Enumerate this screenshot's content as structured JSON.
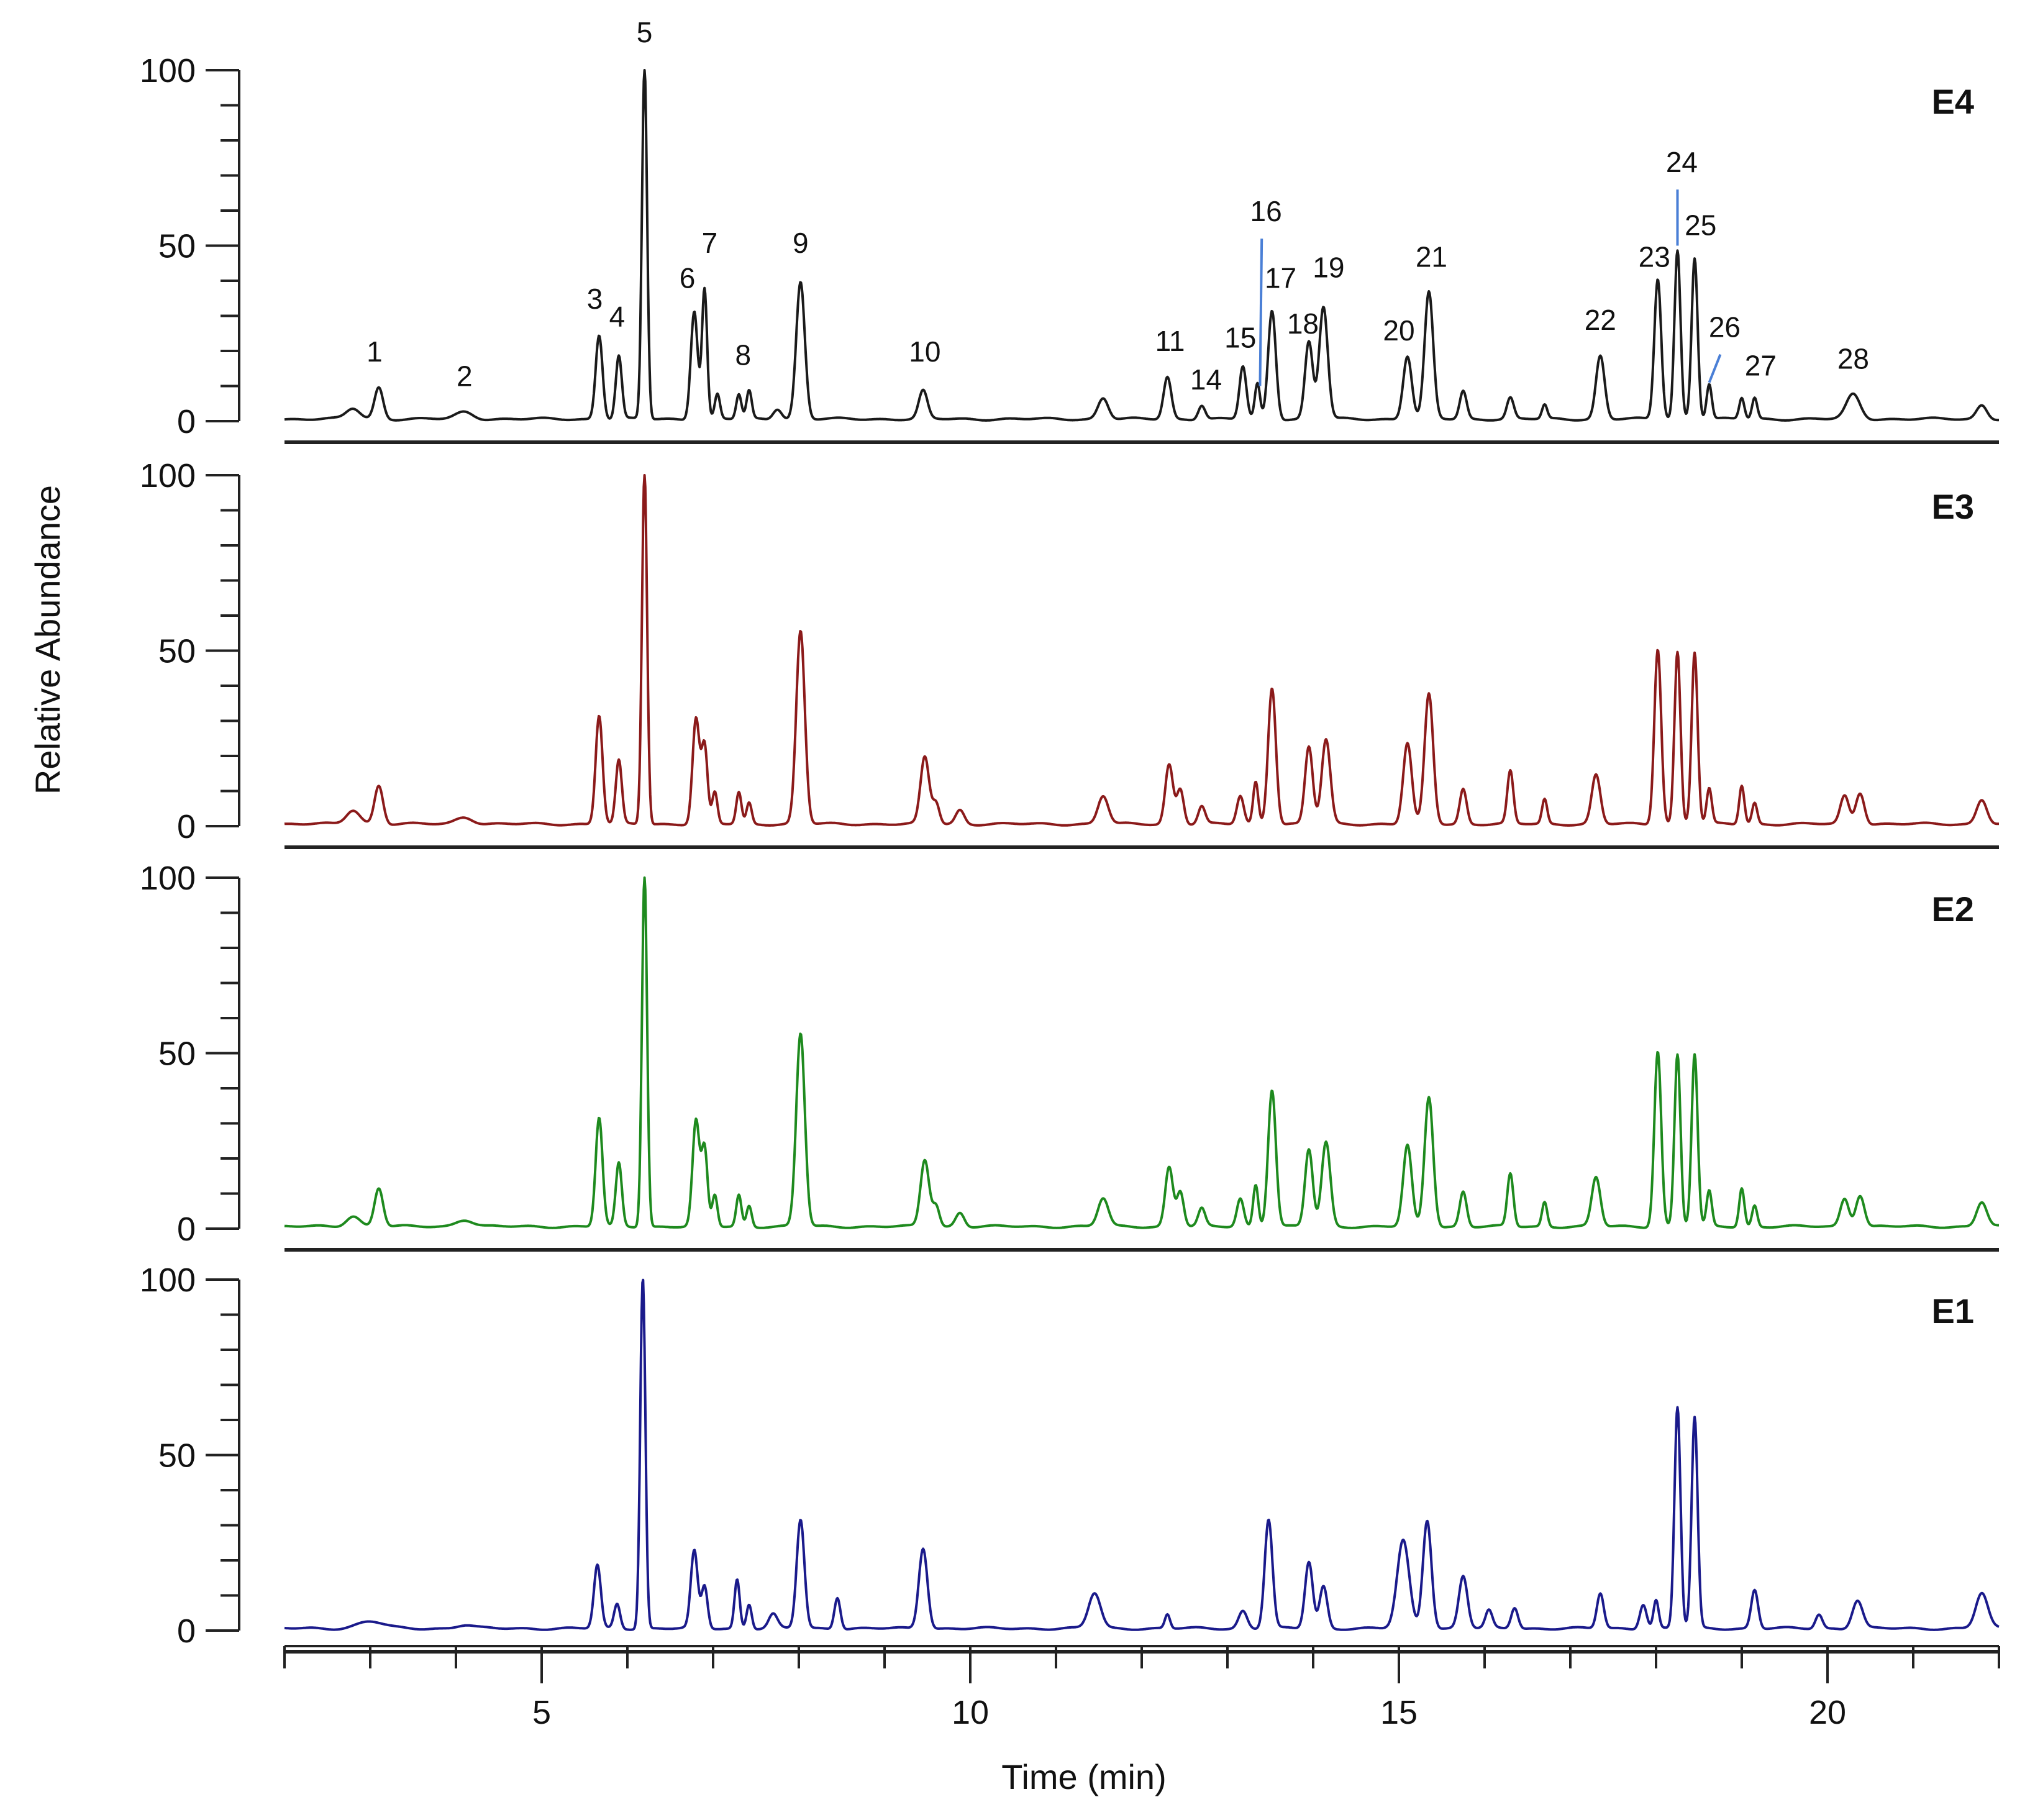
{
  "chart_data": {
    "type": "line",
    "title": "",
    "xlabel": "Time (min)",
    "ylabel": "Relative Abundance",
    "xlim": [
      2.0,
      22.0
    ],
    "ylim": [
      0,
      100
    ],
    "x_ticks": [
      5,
      10,
      15,
      20
    ],
    "x_tick_labels": [
      "5",
      "10",
      "15",
      "20"
    ],
    "y_ticks": [
      0,
      50,
      100
    ],
    "y_tick_labels": [
      "0",
      "50",
      "100"
    ],
    "grid": false,
    "legend": "none",
    "panels": [
      {
        "name": "E4",
        "color": "#1a1a1a",
        "peaks": [
          {
            "x": 2.8,
            "y": 3,
            "w": 0.08
          },
          {
            "x": 3.1,
            "y": 9,
            "w": 0.05
          },
          {
            "x": 4.1,
            "y": 2,
            "w": 0.1
          },
          {
            "x": 5.67,
            "y": 24,
            "w": 0.04
          },
          {
            "x": 5.9,
            "y": 18,
            "w": 0.035
          },
          {
            "x": 6.2,
            "y": 100,
            "w": 0.03
          },
          {
            "x": 6.78,
            "y": 31,
            "w": 0.04
          },
          {
            "x": 6.9,
            "y": 37,
            "w": 0.03
          },
          {
            "x": 7.05,
            "y": 7,
            "w": 0.03
          },
          {
            "x": 7.3,
            "y": 7,
            "w": 0.03
          },
          {
            "x": 7.42,
            "y": 8,
            "w": 0.03
          },
          {
            "x": 7.75,
            "y": 3,
            "w": 0.05
          },
          {
            "x": 8.02,
            "y": 39,
            "w": 0.05
          },
          {
            "x": 9.45,
            "y": 8,
            "w": 0.05
          },
          {
            "x": 11.55,
            "y": 6,
            "w": 0.06
          },
          {
            "x": 12.3,
            "y": 12,
            "w": 0.045
          },
          {
            "x": 12.7,
            "y": 4,
            "w": 0.04
          },
          {
            "x": 13.18,
            "y": 15,
            "w": 0.04
          },
          {
            "x": 13.35,
            "y": 10,
            "w": 0.03
          },
          {
            "x": 13.52,
            "y": 31,
            "w": 0.045
          },
          {
            "x": 13.95,
            "y": 22,
            "w": 0.045
          },
          {
            "x": 14.12,
            "y": 32,
            "w": 0.05
          },
          {
            "x": 15.1,
            "y": 18,
            "w": 0.05
          },
          {
            "x": 15.35,
            "y": 36,
            "w": 0.05
          },
          {
            "x": 15.75,
            "y": 8,
            "w": 0.04
          },
          {
            "x": 16.3,
            "y": 6,
            "w": 0.04
          },
          {
            "x": 16.7,
            "y": 4,
            "w": 0.03
          },
          {
            "x": 17.35,
            "y": 18,
            "w": 0.05
          },
          {
            "x": 18.02,
            "y": 40,
            "w": 0.04
          },
          {
            "x": 18.25,
            "y": 48,
            "w": 0.035
          },
          {
            "x": 18.45,
            "y": 46,
            "w": 0.035
          },
          {
            "x": 18.62,
            "y": 10,
            "w": 0.03
          },
          {
            "x": 19.0,
            "y": 6,
            "w": 0.03
          },
          {
            "x": 19.15,
            "y": 6,
            "w": 0.03
          },
          {
            "x": 20.3,
            "y": 7,
            "w": 0.08
          },
          {
            "x": 21.8,
            "y": 4,
            "w": 0.06
          }
        ],
        "peak_labels": [
          {
            "label": "1",
            "x": 3.05,
            "y": 17
          },
          {
            "label": "2",
            "x": 4.1,
            "y": 10
          },
          {
            "label": "3",
            "x": 5.62,
            "y": 32
          },
          {
            "label": "4",
            "x": 5.88,
            "y": 27
          },
          {
            "label": "5",
            "x": 6.2,
            "y": 108
          },
          {
            "label": "6",
            "x": 6.7,
            "y": 38
          },
          {
            "label": "7",
            "x": 6.96,
            "y": 48
          },
          {
            "label": "8",
            "x": 7.35,
            "y": 16
          },
          {
            "label": "9",
            "x": 8.02,
            "y": 48
          },
          {
            "label": "10",
            "x": 9.47,
            "y": 17
          },
          {
            "label": "11",
            "x": 12.33,
            "y": 20
          },
          {
            "label": "14",
            "x": 12.75,
            "y": 9
          },
          {
            "label": "15",
            "x": 13.15,
            "y": 21
          },
          {
            "label": "16",
            "x": 13.45,
            "y": 57
          },
          {
            "label": "17",
            "x": 13.62,
            "y": 38
          },
          {
            "label": "18",
            "x": 13.88,
            "y": 25
          },
          {
            "label": "19",
            "x": 14.18,
            "y": 41
          },
          {
            "label": "20",
            "x": 15.0,
            "y": 23
          },
          {
            "label": "21",
            "x": 15.38,
            "y": 44
          },
          {
            "label": "22",
            "x": 17.35,
            "y": 26
          },
          {
            "label": "23",
            "x": 17.98,
            "y": 44
          },
          {
            "label": "24",
            "x": 18.3,
            "y": 71
          },
          {
            "label": "25",
            "x": 18.52,
            "y": 53
          },
          {
            "label": "26",
            "x": 18.8,
            "y": 24
          },
          {
            "label": "27",
            "x": 19.22,
            "y": 13
          },
          {
            "label": "28",
            "x": 20.3,
            "y": 15
          }
        ],
        "leader_lines": [
          {
            "x1": 13.4,
            "y1": 52,
            "x2": 13.38,
            "y2": 10
          },
          {
            "x1": 18.25,
            "y1": 66,
            "x2": 18.25,
            "y2": 50
          },
          {
            "x1": 18.75,
            "y1": 19,
            "x2": 18.62,
            "y2": 11
          }
        ]
      },
      {
        "name": "E3",
        "color": "#8b1a1a",
        "peaks": [
          {
            "x": 2.8,
            "y": 4,
            "w": 0.08
          },
          {
            "x": 3.1,
            "y": 11,
            "w": 0.05
          },
          {
            "x": 4.1,
            "y": 2,
            "w": 0.1
          },
          {
            "x": 5.67,
            "y": 31,
            "w": 0.04
          },
          {
            "x": 5.9,
            "y": 18,
            "w": 0.035
          },
          {
            "x": 6.2,
            "y": 100,
            "w": 0.03
          },
          {
            "x": 6.8,
            "y": 30,
            "w": 0.04
          },
          {
            "x": 6.9,
            "y": 22,
            "w": 0.035
          },
          {
            "x": 7.02,
            "y": 9,
            "w": 0.03
          },
          {
            "x": 7.3,
            "y": 9,
            "w": 0.03
          },
          {
            "x": 7.42,
            "y": 6,
            "w": 0.03
          },
          {
            "x": 8.02,
            "y": 55,
            "w": 0.05
          },
          {
            "x": 9.47,
            "y": 19,
            "w": 0.05
          },
          {
            "x": 9.6,
            "y": 6,
            "w": 0.04
          },
          {
            "x": 9.88,
            "y": 4,
            "w": 0.05
          },
          {
            "x": 11.55,
            "y": 8,
            "w": 0.06
          },
          {
            "x": 12.32,
            "y": 17,
            "w": 0.045
          },
          {
            "x": 12.45,
            "y": 10,
            "w": 0.04
          },
          {
            "x": 12.7,
            "y": 5,
            "w": 0.04
          },
          {
            "x": 13.15,
            "y": 8,
            "w": 0.04
          },
          {
            "x": 13.33,
            "y": 12,
            "w": 0.03
          },
          {
            "x": 13.52,
            "y": 39,
            "w": 0.045
          },
          {
            "x": 13.95,
            "y": 22,
            "w": 0.045
          },
          {
            "x": 14.15,
            "y": 24,
            "w": 0.05
          },
          {
            "x": 15.1,
            "y": 23,
            "w": 0.05
          },
          {
            "x": 15.35,
            "y": 37,
            "w": 0.05
          },
          {
            "x": 15.75,
            "y": 10,
            "w": 0.04
          },
          {
            "x": 16.3,
            "y": 15,
            "w": 0.035
          },
          {
            "x": 16.7,
            "y": 7,
            "w": 0.03
          },
          {
            "x": 17.3,
            "y": 14,
            "w": 0.05
          },
          {
            "x": 18.02,
            "y": 50,
            "w": 0.04
          },
          {
            "x": 18.25,
            "y": 49,
            "w": 0.035
          },
          {
            "x": 18.45,
            "y": 49,
            "w": 0.035
          },
          {
            "x": 18.62,
            "y": 10,
            "w": 0.03
          },
          {
            "x": 19.0,
            "y": 11,
            "w": 0.03
          },
          {
            "x": 19.15,
            "y": 6,
            "w": 0.03
          },
          {
            "x": 20.2,
            "y": 8,
            "w": 0.05
          },
          {
            "x": 20.38,
            "y": 9,
            "w": 0.05
          },
          {
            "x": 21.8,
            "y": 7,
            "w": 0.06
          }
        ]
      },
      {
        "name": "E2",
        "color": "#1e8a1e",
        "peaks": [
          {
            "x": 2.8,
            "y": 3,
            "w": 0.08
          },
          {
            "x": 3.1,
            "y": 11,
            "w": 0.05
          },
          {
            "x": 4.1,
            "y": 2,
            "w": 0.1
          },
          {
            "x": 5.67,
            "y": 31,
            "w": 0.04
          },
          {
            "x": 5.9,
            "y": 18,
            "w": 0.035
          },
          {
            "x": 6.2,
            "y": 100,
            "w": 0.03
          },
          {
            "x": 6.8,
            "y": 30,
            "w": 0.04
          },
          {
            "x": 6.9,
            "y": 22,
            "w": 0.035
          },
          {
            "x": 7.02,
            "y": 9,
            "w": 0.03
          },
          {
            "x": 7.3,
            "y": 9,
            "w": 0.03
          },
          {
            "x": 7.42,
            "y": 6,
            "w": 0.03
          },
          {
            "x": 8.02,
            "y": 55,
            "w": 0.05
          },
          {
            "x": 9.47,
            "y": 19,
            "w": 0.05
          },
          {
            "x": 9.6,
            "y": 6,
            "w": 0.04
          },
          {
            "x": 9.88,
            "y": 4,
            "w": 0.05
          },
          {
            "x": 11.55,
            "y": 8,
            "w": 0.06
          },
          {
            "x": 12.32,
            "y": 17,
            "w": 0.045
          },
          {
            "x": 12.45,
            "y": 10,
            "w": 0.04
          },
          {
            "x": 12.7,
            "y": 5,
            "w": 0.04
          },
          {
            "x": 13.15,
            "y": 8,
            "w": 0.04
          },
          {
            "x": 13.33,
            "y": 12,
            "w": 0.03
          },
          {
            "x": 13.52,
            "y": 39,
            "w": 0.045
          },
          {
            "x": 13.95,
            "y": 22,
            "w": 0.045
          },
          {
            "x": 14.15,
            "y": 24,
            "w": 0.05
          },
          {
            "x": 15.1,
            "y": 23,
            "w": 0.05
          },
          {
            "x": 15.35,
            "y": 37,
            "w": 0.05
          },
          {
            "x": 15.75,
            "y": 10,
            "w": 0.04
          },
          {
            "x": 16.3,
            "y": 15,
            "w": 0.035
          },
          {
            "x": 16.7,
            "y": 7,
            "w": 0.03
          },
          {
            "x": 17.3,
            "y": 14,
            "w": 0.05
          },
          {
            "x": 18.02,
            "y": 50,
            "w": 0.04
          },
          {
            "x": 18.25,
            "y": 49,
            "w": 0.035
          },
          {
            "x": 18.45,
            "y": 49,
            "w": 0.035
          },
          {
            "x": 18.62,
            "y": 10,
            "w": 0.03
          },
          {
            "x": 19.0,
            "y": 11,
            "w": 0.03
          },
          {
            "x": 19.15,
            "y": 6,
            "w": 0.03
          },
          {
            "x": 20.2,
            "y": 8,
            "w": 0.05
          },
          {
            "x": 20.38,
            "y": 9,
            "w": 0.05
          },
          {
            "x": 21.8,
            "y": 7,
            "w": 0.06
          }
        ]
      },
      {
        "name": "E1",
        "color": "#1a1a8b",
        "peaks": [
          {
            "x": 3.0,
            "y": 2,
            "w": 0.15
          },
          {
            "x": 4.1,
            "y": 1,
            "w": 0.1
          },
          {
            "x": 5.65,
            "y": 18,
            "w": 0.04
          },
          {
            "x": 5.88,
            "y": 7,
            "w": 0.035
          },
          {
            "x": 6.18,
            "y": 100,
            "w": 0.03
          },
          {
            "x": 6.78,
            "y": 22,
            "w": 0.04
          },
          {
            "x": 6.9,
            "y": 12,
            "w": 0.035
          },
          {
            "x": 7.28,
            "y": 14,
            "w": 0.03
          },
          {
            "x": 7.42,
            "y": 7,
            "w": 0.03
          },
          {
            "x": 7.7,
            "y": 4,
            "w": 0.05
          },
          {
            "x": 8.02,
            "y": 31,
            "w": 0.045
          },
          {
            "x": 8.45,
            "y": 9,
            "w": 0.035
          },
          {
            "x": 9.45,
            "y": 23,
            "w": 0.05
          },
          {
            "x": 11.45,
            "y": 10,
            "w": 0.07
          },
          {
            "x": 12.3,
            "y": 4,
            "w": 0.03
          },
          {
            "x": 13.18,
            "y": 5,
            "w": 0.05
          },
          {
            "x": 13.48,
            "y": 31,
            "w": 0.045
          },
          {
            "x": 13.95,
            "y": 19,
            "w": 0.045
          },
          {
            "x": 14.12,
            "y": 12,
            "w": 0.045
          },
          {
            "x": 15.05,
            "y": 25,
            "w": 0.07
          },
          {
            "x": 15.33,
            "y": 31,
            "w": 0.05
          },
          {
            "x": 15.75,
            "y": 15,
            "w": 0.05
          },
          {
            "x": 16.05,
            "y": 5,
            "w": 0.04
          },
          {
            "x": 16.35,
            "y": 6,
            "w": 0.04
          },
          {
            "x": 17.35,
            "y": 10,
            "w": 0.04
          },
          {
            "x": 17.85,
            "y": 7,
            "w": 0.04
          },
          {
            "x": 18.0,
            "y": 8,
            "w": 0.03
          },
          {
            "x": 18.25,
            "y": 63,
            "w": 0.035
          },
          {
            "x": 18.45,
            "y": 60,
            "w": 0.035
          },
          {
            "x": 19.15,
            "y": 11,
            "w": 0.04
          },
          {
            "x": 19.9,
            "y": 4,
            "w": 0.04
          },
          {
            "x": 20.35,
            "y": 8,
            "w": 0.06
          },
          {
            "x": 21.8,
            "y": 10,
            "w": 0.07
          }
        ]
      }
    ]
  }
}
